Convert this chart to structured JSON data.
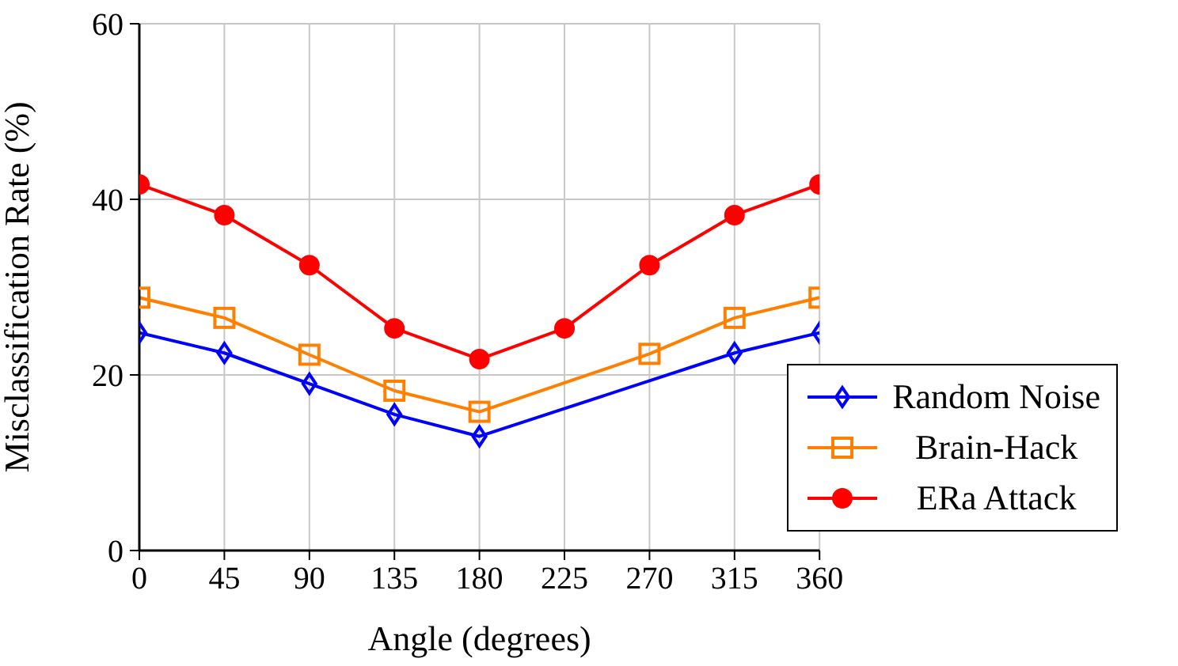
{
  "chart_data": {
    "type": "line",
    "xlabel": "Angle (degrees)",
    "ylabel": "Misclassification Rate (%)",
    "x": [
      0,
      45,
      90,
      135,
      180,
      225,
      270,
      315,
      360
    ],
    "series": [
      {
        "name": "Random Noise",
        "color": "#0000ff",
        "marker": "diamond",
        "values": [
          24.8,
          22.5,
          19.0,
          15.5,
          13.0,
          null,
          null,
          22.5,
          24.8
        ]
      },
      {
        "name": "Brain-Hack",
        "color": "#ff8000",
        "marker": "square",
        "values": [
          28.8,
          26.5,
          22.3,
          18.2,
          15.8,
          null,
          22.4,
          26.5,
          28.8
        ]
      },
      {
        "name": "ERa Attack",
        "color": "#ff0000",
        "marker": "circle",
        "values": [
          41.7,
          38.2,
          32.5,
          25.3,
          21.8,
          25.3,
          32.5,
          38.2,
          41.7
        ]
      }
    ],
    "xlim": [
      0,
      360
    ],
    "xticks": [
      0,
      45,
      90,
      135,
      180,
      225,
      270,
      315,
      360
    ],
    "ylim": [
      0,
      60
    ],
    "yticks": [
      0,
      20,
      40,
      60
    ],
    "grid": true,
    "legend": "bottom right",
    "line_style": "solid"
  }
}
